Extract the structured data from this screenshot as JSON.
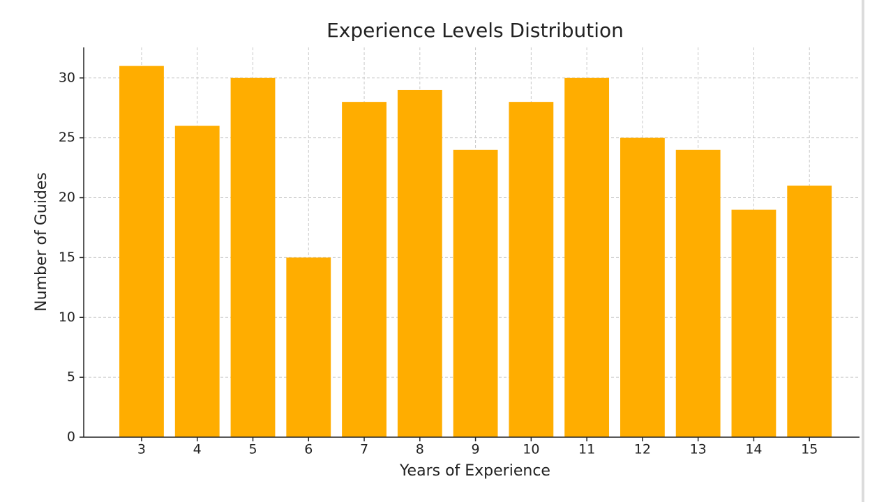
{
  "chart_data": {
    "type": "bar",
    "title": "Experience Levels Distribution",
    "x_label": "Years of Experience",
    "y_label": "Number of Guides",
    "x": [
      3,
      4,
      5,
      6,
      7,
      8,
      9,
      10,
      11,
      12,
      13,
      14,
      15
    ],
    "values": [
      31,
      26,
      30,
      15,
      28,
      29,
      24,
      28,
      30,
      25,
      24,
      19,
      21
    ],
    "color": "#ffad00",
    "xlim": [
      1.96,
      15.9
    ],
    "xticks": [
      3,
      4,
      5,
      6,
      7,
      8,
      9,
      10,
      11,
      12,
      13,
      14,
      15
    ],
    "ylim": [
      0,
      32.55
    ],
    "yticks": [
      0,
      5,
      10,
      15,
      20,
      25,
      30
    ],
    "grid": true
  }
}
